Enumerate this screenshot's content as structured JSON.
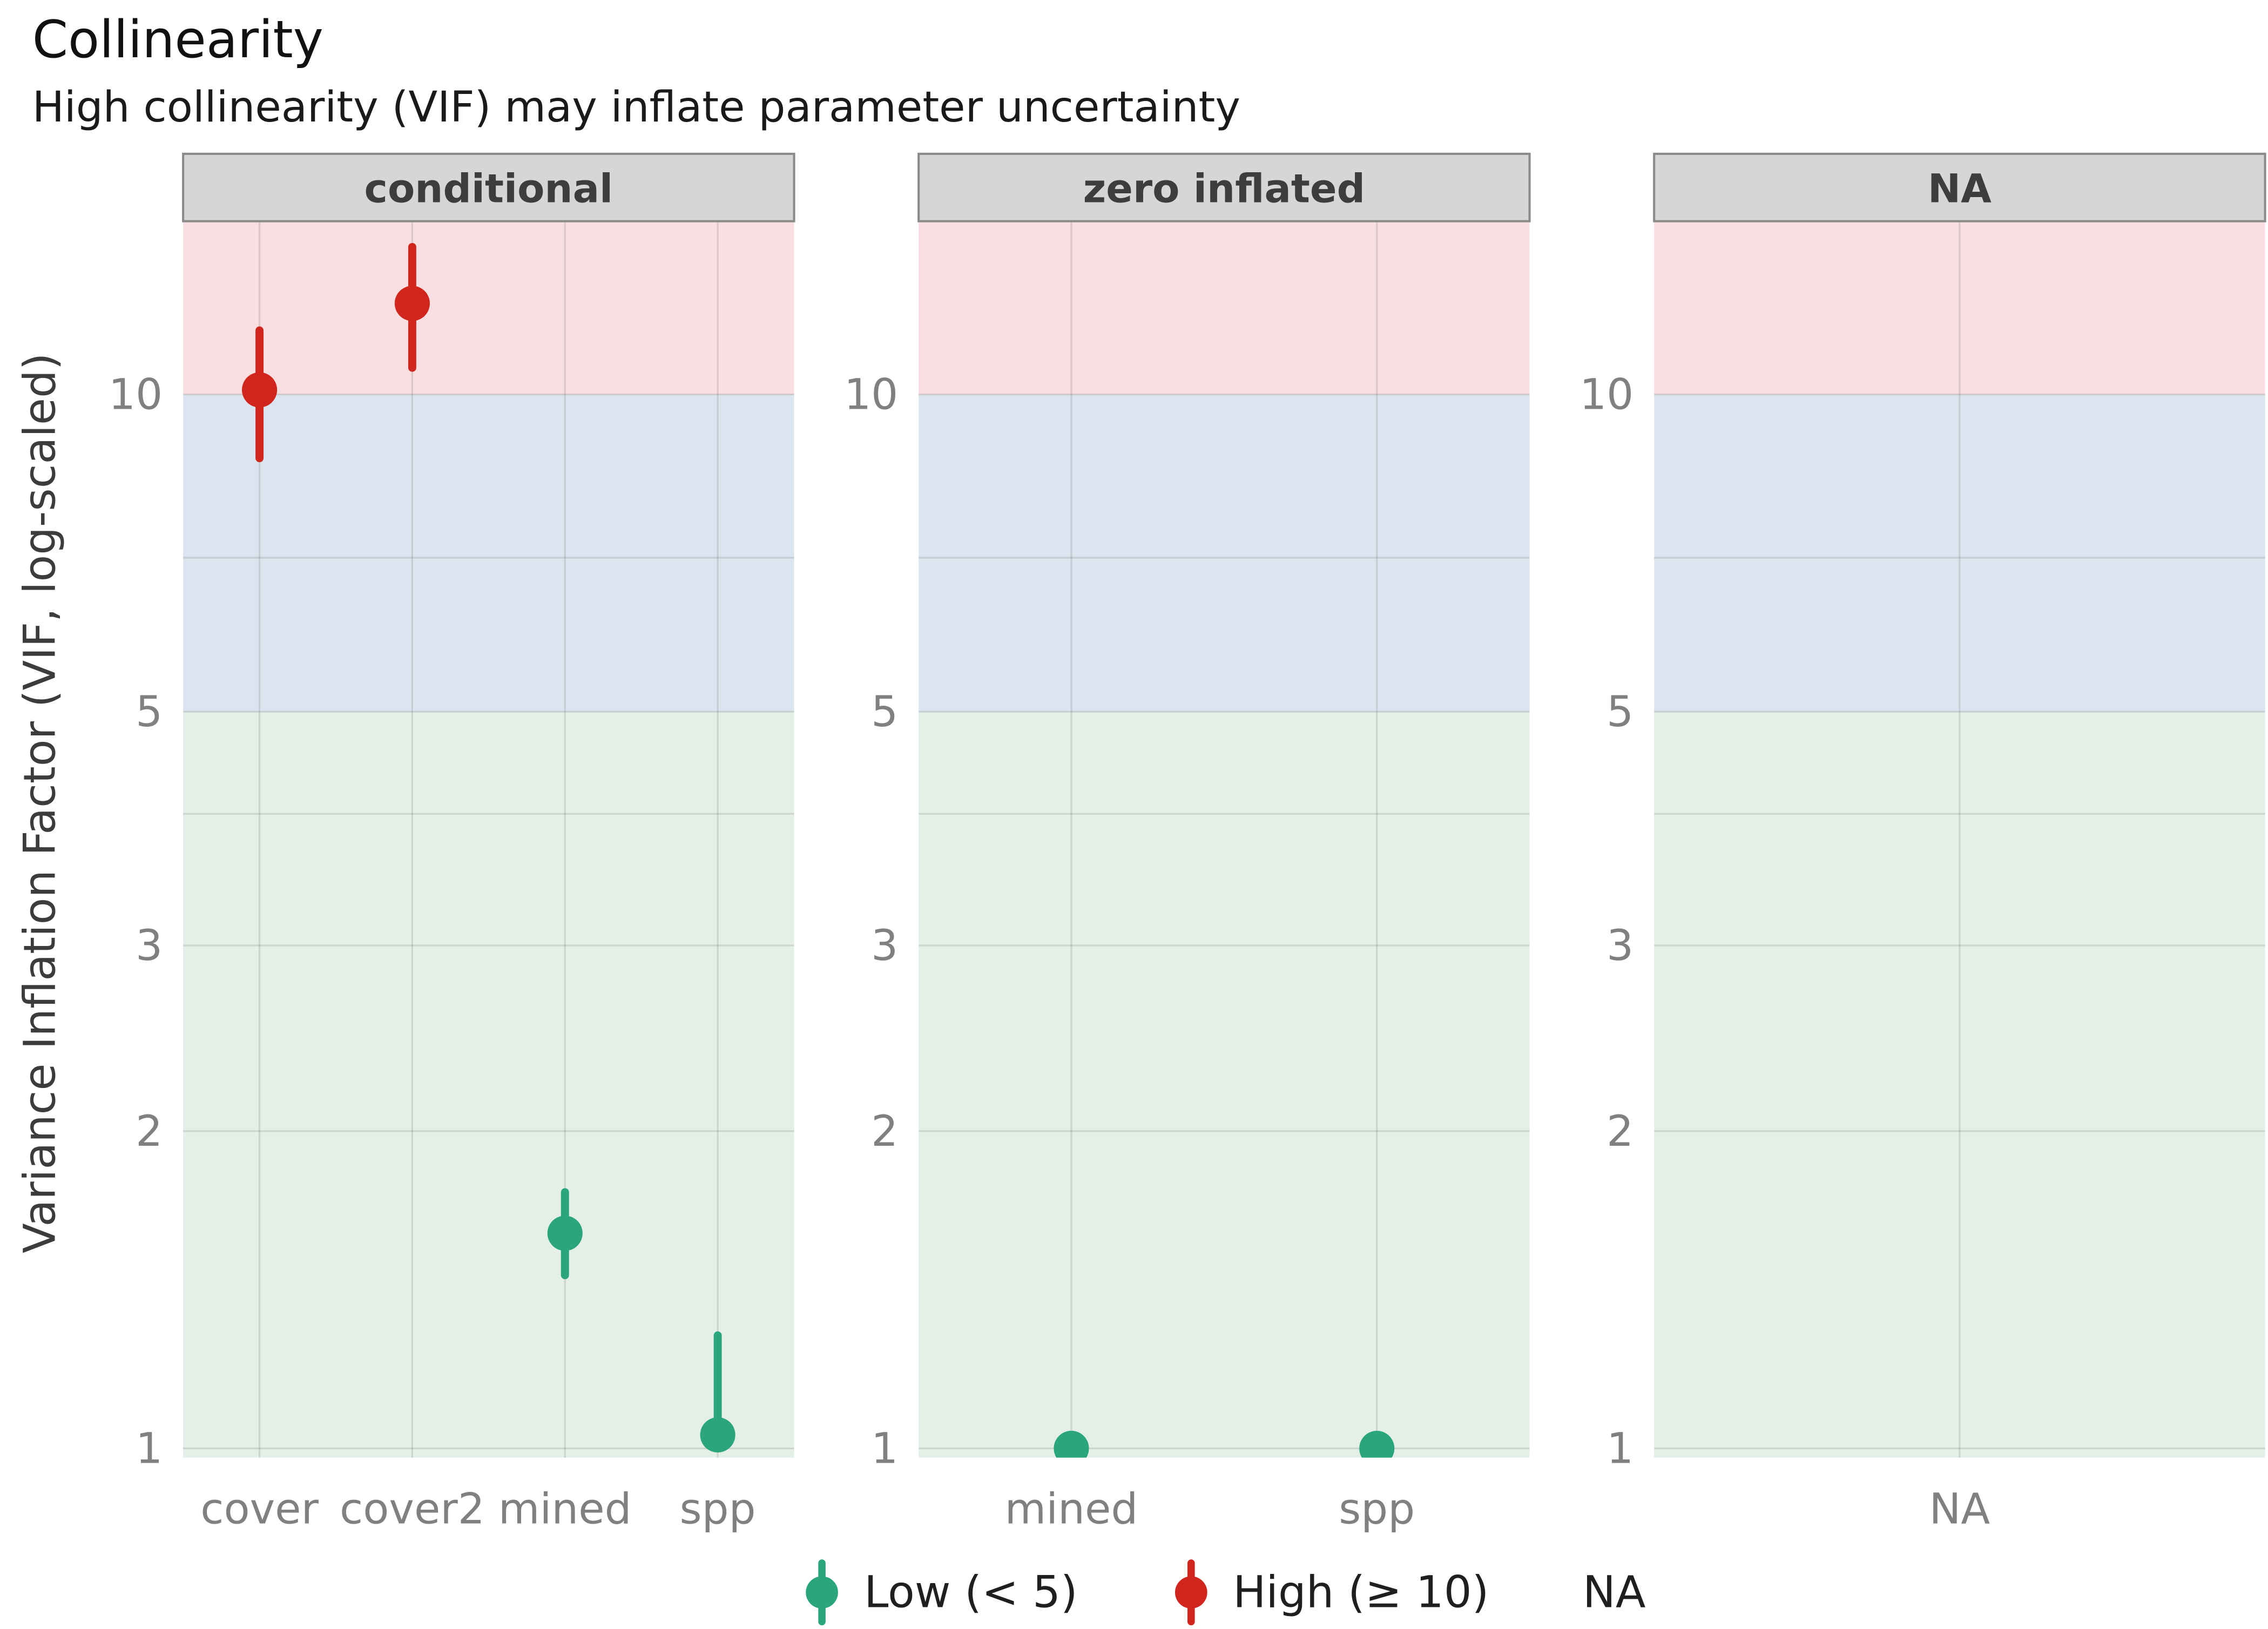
{
  "chart_data": {
    "type": "scatter",
    "variant": "pointrange-faceted",
    "title": "Collinearity",
    "subtitle": "High collinearity (VIF) may inflate parameter uncertainty",
    "ylabel": "Variance Inflation Factor (VIF, log-scaled)",
    "yscale": "log",
    "ylim": [
      0.98,
      14.6
    ],
    "yticks": [
      1,
      2,
      3,
      5,
      10
    ],
    "yticks_minor": [
      4,
      7
    ],
    "grid": true,
    "legend_position": "bottom",
    "bands": [
      {
        "from": 0.98,
        "to": 5,
        "color": "#e4f0e7",
        "label": "low-zone"
      },
      {
        "from": 5,
        "to": 10,
        "color": "#dbe5ef",
        "label": "moderate-zone"
      },
      {
        "from": 10,
        "to": 14.6,
        "color": "#f9dfe1",
        "label": "high-zone"
      }
    ],
    "groups": {
      "low": {
        "color": "#2aa57c",
        "label": "Low (< 5)"
      },
      "high": {
        "color": "#d0261e",
        "label": "High (≥ 10)"
      }
    },
    "legend": [
      {
        "group": "low",
        "label": "Low (< 5)"
      },
      {
        "group": "high",
        "label": "High (≥ 10)"
      },
      {
        "group": null,
        "label": "NA"
      }
    ],
    "facets": [
      {
        "label": "conditional",
        "categories": [
          "cover",
          "cover2",
          "mined",
          "spp"
        ],
        "points": [
          {
            "x": "cover",
            "y": 10.1,
            "ymin": 8.7,
            "ymax": 11.5,
            "group": "high"
          },
          {
            "x": "cover2",
            "y": 12.2,
            "ymin": 10.6,
            "ymax": 13.8,
            "group": "high"
          },
          {
            "x": "mined",
            "y": 1.6,
            "ymin": 1.46,
            "ymax": 1.75,
            "group": "low"
          },
          {
            "x": "spp",
            "y": 1.03,
            "ymin": 1.0,
            "ymax": 1.28,
            "group": "low"
          }
        ]
      },
      {
        "label": "zero inflated",
        "categories": [
          "mined",
          "spp"
        ],
        "points": [
          {
            "x": "mined",
            "y": 1.0,
            "ymin": 1.0,
            "ymax": 1.0,
            "group": "low"
          },
          {
            "x": "spp",
            "y": 1.0,
            "ymin": 1.0,
            "ymax": 1.0,
            "group": "low"
          }
        ]
      },
      {
        "label": "NA",
        "categories": [
          "NA"
        ],
        "points": []
      }
    ],
    "style": {
      "strip_bg": "#d6d6d6",
      "strip_border": "#8a8a8a",
      "strip_text": "#3d3d3d",
      "grid_color": "rgba(107,107,107,0.20)",
      "tick_text": "#808080"
    }
  }
}
